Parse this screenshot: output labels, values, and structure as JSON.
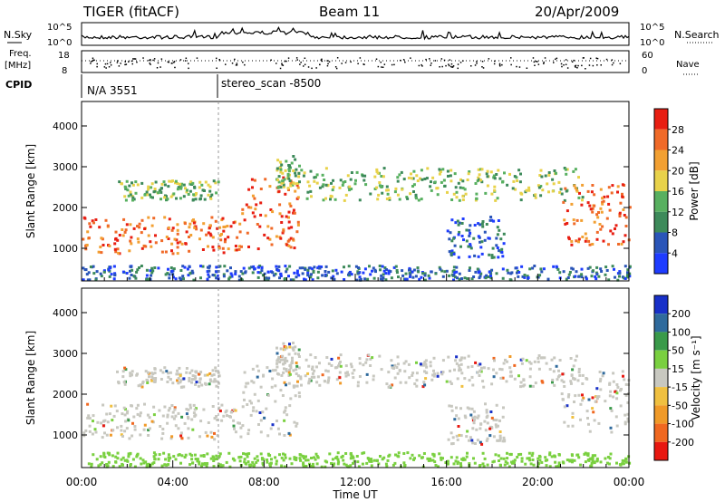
{
  "header": {
    "title_left": "TIGER (fitACF)",
    "title_center": "Beam 11",
    "title_right": "20/Apr/2009"
  },
  "nsky_panel": {
    "label": "N.Sky",
    "right_label": "N.Search",
    "ticks": [
      "10^5",
      "10^0"
    ]
  },
  "freq_panel": {
    "label_line1": "Freq.",
    "label_line2": "[MHz]",
    "right_label": "Nave",
    "left_ticks": [
      "18",
      "8"
    ],
    "right_ticks": [
      "60",
      "0"
    ]
  },
  "cpid_panel": {
    "label": "CPID",
    "entries": [
      "N/A 3551",
      "stereo_scan -8500"
    ]
  },
  "chart_data": [
    {
      "type": "heatmap",
      "quantity": "Power",
      "ylabel": "Slant Range [km]",
      "y_ticks": [
        "1000",
        "2000",
        "3000",
        "4000"
      ],
      "ylim": [
        200,
        4600
      ],
      "colorbar_label": "Power [dB]",
      "colorbar_ticks": [
        "4",
        "8",
        "12",
        "16",
        "20",
        "24",
        "28"
      ],
      "colorbar_colors": [
        "#1e3cff",
        "#2a55b8",
        "#3d8a5a",
        "#58b060",
        "#e8d24a",
        "#f2a032",
        "#f06a28",
        "#e81e12"
      ]
    },
    {
      "type": "heatmap",
      "quantity": "Velocity",
      "ylabel": "Slant Range [km]",
      "y_ticks": [
        "1000",
        "2000",
        "3000",
        "4000"
      ],
      "ylim": [
        200,
        4600
      ],
      "colorbar_label": "Velocity [m s⁻¹]",
      "colorbar_ticks": [
        "200",
        "100",
        "50",
        "15",
        "-15",
        "-50",
        "-100",
        "-200"
      ],
      "colorbar_colors": [
        "#1830c8",
        "#2f6a9c",
        "#3a9a4a",
        "#7ad040",
        "#c8c8c0",
        "#f0c040",
        "#f09a28",
        "#f06820",
        "#e81810"
      ]
    }
  ],
  "x_axis": {
    "label": "Time UT",
    "ticks": [
      "00:00",
      "04:00",
      "08:00",
      "12:00",
      "16:00",
      "20:00",
      "00:00"
    ]
  }
}
